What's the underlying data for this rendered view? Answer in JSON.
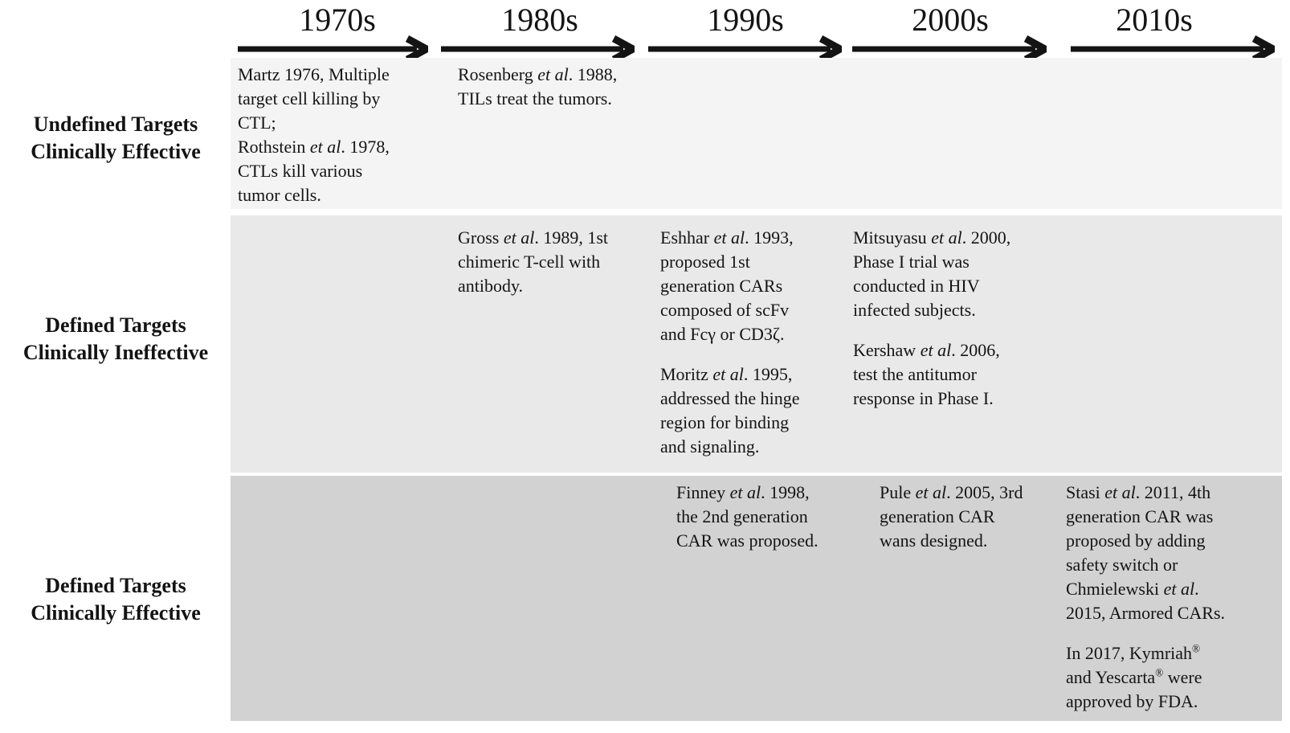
{
  "colors": {
    "arrow": "#141414",
    "text": "#141414",
    "background": "#ffffff",
    "band_row1": "#f4f4f4",
    "band_row2": "#e9e9e9",
    "band_row3": "#d2d2d2"
  },
  "timeline": {
    "decades": [
      "1970s",
      "1980s",
      "1990s",
      "2000s",
      "2010s"
    ],
    "rows": [
      {
        "label_lines": [
          "Undefined Targets",
          "Clinically Effective"
        ],
        "band_color": "#f4f4f4",
        "cells": [
          {
            "decade_index": 0,
            "paragraphs": [
              [
                {
                  "t": "Martz 1976, Multiple"
                },
                {
                  "br": true
                },
                {
                  "t": "target cell killing by"
                },
                {
                  "br": true
                },
                {
                  "t": "CTL;"
                },
                {
                  "br": true
                },
                {
                  "t": "Rothstein "
                },
                {
                  "t": "et al",
                  "i": true
                },
                {
                  "t": ". 1978,"
                },
                {
                  "br": true
                },
                {
                  "t": "CTLs kill various"
                },
                {
                  "br": true
                },
                {
                  "t": "tumor cells."
                }
              ]
            ]
          },
          {
            "decade_index": 1,
            "paragraphs": [
              [
                {
                  "t": "Rosenberg "
                },
                {
                  "t": "et al",
                  "i": true
                },
                {
                  "t": ". 1988,"
                },
                {
                  "br": true
                },
                {
                  "t": "TILs treat the tumors."
                }
              ]
            ]
          }
        ]
      },
      {
        "label_lines": [
          "Defined Targets",
          "Clinically Ineffective"
        ],
        "band_color": "#e9e9e9",
        "cells": [
          {
            "decade_index": 1,
            "paragraphs": [
              [
                {
                  "t": "Gross "
                },
                {
                  "t": "et al",
                  "i": true
                },
                {
                  "t": ". 1989, 1st"
                },
                {
                  "br": true
                },
                {
                  "t": "chimeric T-cell with"
                },
                {
                  "br": true
                },
                {
                  "t": "antibody."
                }
              ]
            ]
          },
          {
            "decade_index": 2,
            "paragraphs": [
              [
                {
                  "t": "Eshhar "
                },
                {
                  "t": "et al",
                  "i": true
                },
                {
                  "t": ". 1993,"
                },
                {
                  "br": true
                },
                {
                  "t": "proposed 1st"
                },
                {
                  "br": true
                },
                {
                  "t": "generation CARs"
                },
                {
                  "br": true
                },
                {
                  "t": "composed of scFv"
                },
                {
                  "br": true
                },
                {
                  "t": "and Fcγ or CD3ζ."
                }
              ],
              [
                {
                  "t": "Moritz "
                },
                {
                  "t": "et al",
                  "i": true
                },
                {
                  "t": ". 1995,"
                },
                {
                  "br": true
                },
                {
                  "t": "addressed the hinge"
                },
                {
                  "br": true
                },
                {
                  "t": "region for binding"
                },
                {
                  "br": true
                },
                {
                  "t": "and signaling."
                }
              ]
            ]
          },
          {
            "decade_index": 3,
            "paragraphs": [
              [
                {
                  "t": "Mitsuyasu "
                },
                {
                  "t": "et al",
                  "i": true
                },
                {
                  "t": ". 2000,"
                },
                {
                  "br": true
                },
                {
                  "t": "Phase I trial was"
                },
                {
                  "br": true
                },
                {
                  "t": "conducted in HIV"
                },
                {
                  "br": true
                },
                {
                  "t": "infected subjects."
                }
              ],
              [
                {
                  "t": "Kershaw "
                },
                {
                  "t": "et al",
                  "i": true
                },
                {
                  "t": ". 2006,"
                },
                {
                  "br": true
                },
                {
                  "t": "test the antitumor"
                },
                {
                  "br": true
                },
                {
                  "t": "response in Phase I."
                }
              ]
            ]
          }
        ]
      },
      {
        "label_lines": [
          "Defined Targets",
          "Clinically Effective"
        ],
        "band_color": "#d2d2d2",
        "cells": [
          {
            "decade_index": 2,
            "paragraphs": [
              [
                {
                  "t": "Finney "
                },
                {
                  "t": "et al",
                  "i": true
                },
                {
                  "t": ". 1998,"
                },
                {
                  "br": true
                },
                {
                  "t": "the 2nd generation"
                },
                {
                  "br": true
                },
                {
                  "t": "CAR was proposed."
                }
              ]
            ]
          },
          {
            "decade_index": 3,
            "paragraphs": [
              [
                {
                  "t": "Pule "
                },
                {
                  "t": "et al",
                  "i": true
                },
                {
                  "t": ". 2005, 3rd"
                },
                {
                  "br": true
                },
                {
                  "t": "generation CAR"
                },
                {
                  "br": true
                },
                {
                  "t": "wans designed."
                }
              ]
            ]
          },
          {
            "decade_index": 4,
            "paragraphs": [
              [
                {
                  "t": "Stasi "
                },
                {
                  "t": "et al",
                  "i": true
                },
                {
                  "t": ". 2011, 4th"
                },
                {
                  "br": true
                },
                {
                  "t": "generation CAR was"
                },
                {
                  "br": true
                },
                {
                  "t": "proposed by adding"
                },
                {
                  "br": true
                },
                {
                  "t": "safety switch or"
                },
                {
                  "br": true
                },
                {
                  "t": "Chmielewski "
                },
                {
                  "t": "et al",
                  "i": true
                },
                {
                  "t": "."
                },
                {
                  "br": true
                },
                {
                  "t": "2015, Armored CARs."
                }
              ],
              [
                {
                  "t": "In 2017, Kymriah"
                },
                {
                  "t": "®",
                  "sup": true
                },
                {
                  "br": true
                },
                {
                  "t": "and Yescarta"
                },
                {
                  "t": "®",
                  "sup": true
                },
                {
                  "t": " were"
                },
                {
                  "br": true
                },
                {
                  "t": "approved by FDA."
                }
              ]
            ]
          }
        ]
      }
    ]
  }
}
